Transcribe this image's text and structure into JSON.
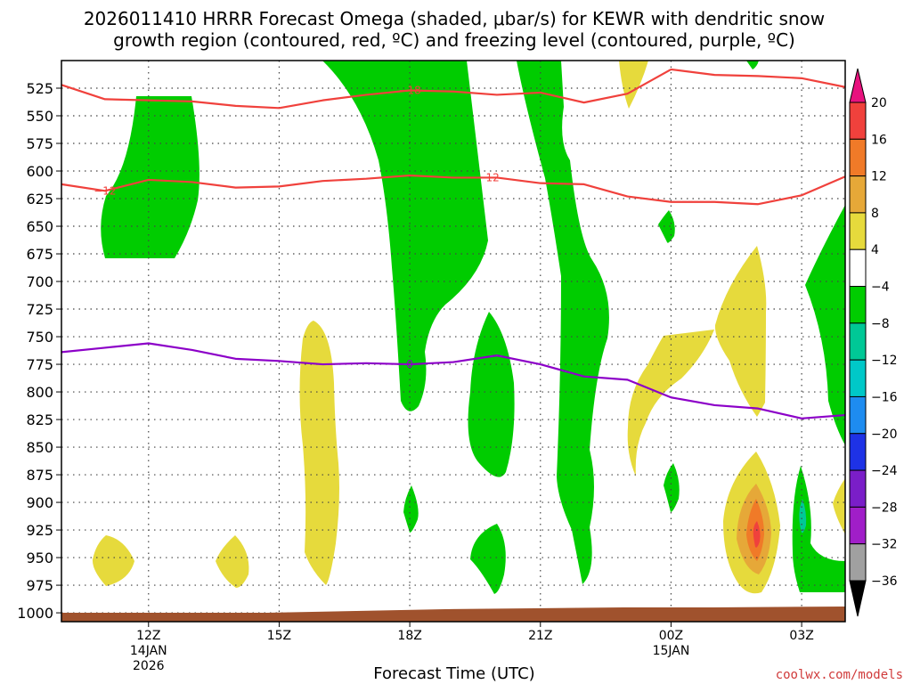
{
  "chart_data": {
    "type": "time-height cross-section",
    "title_line1": "2026011410 HRRR Forecast Omega (shaded, μbar/s) for KEWR with dendritic snow",
    "title_line2": "growth region (contoured, red, ºC) and freezing level (contoured, purple, ºC)",
    "xlabel": "Forecast Time (UTC)",
    "credit": "coolwx.com/models",
    "pressure_range": [
      1008,
      500
    ],
    "y_ticks": [
      "525",
      "550",
      "575",
      "600",
      "625",
      "650",
      "675",
      "700",
      "725",
      "750",
      "775",
      "800",
      "825",
      "850",
      "875",
      "900",
      "925",
      "950",
      "975",
      "1000"
    ],
    "time_range_hours": [
      10.0,
      28.0
    ],
    "x_ticks": [
      {
        "hour": 12,
        "label": "12Z",
        "sub1": "14JAN",
        "sub2": "2026"
      },
      {
        "hour": 15,
        "label": "15Z",
        "sub1": "",
        "sub2": ""
      },
      {
        "hour": 18,
        "label": "18Z",
        "sub1": "",
        "sub2": ""
      },
      {
        "hour": 21,
        "label": "21Z",
        "sub1": "",
        "sub2": ""
      },
      {
        "hour": 24,
        "label": "00Z",
        "sub1": "15JAN",
        "sub2": ""
      },
      {
        "hour": 27,
        "label": "03Z",
        "sub1": "",
        "sub2": ""
      }
    ],
    "colorbar": {
      "levels": [
        "20",
        "16",
        "12",
        "8",
        "4",
        "−4",
        "−8",
        "−12",
        "−16",
        "−20",
        "−24",
        "−28",
        "−32",
        "−36"
      ],
      "colors": [
        "#e8127e",
        "#f0413c",
        "#f07a28",
        "#e6a838",
        "#e6da3c",
        "#ffffff",
        "#00cc00",
        "#00c896",
        "#00c8c8",
        "#1e8cf0",
        "#1e32e6",
        "#7a1ec8",
        "#a01ec8",
        "#a0a0a0",
        "#000000"
      ]
    },
    "contours": [
      {
        "name": "minus-18-isotherm",
        "label": "−18",
        "color": "#f0413c",
        "points": [
          [
            10.0,
            522
          ],
          [
            11.0,
            535
          ],
          [
            12.0,
            536
          ],
          [
            13.0,
            537
          ],
          [
            14.0,
            541
          ],
          [
            15.0,
            543
          ],
          [
            16.0,
            536
          ],
          [
            17.0,
            531
          ],
          [
            18.0,
            527
          ],
          [
            19.0,
            528
          ],
          [
            20.0,
            531
          ],
          [
            21.0,
            529
          ],
          [
            22.0,
            538
          ],
          [
            23.0,
            530
          ],
          [
            24.0,
            508
          ],
          [
            25.0,
            513
          ],
          [
            26.0,
            514
          ],
          [
            27.0,
            516
          ],
          [
            28.0,
            524
          ]
        ]
      },
      {
        "name": "minus-12-isotherm",
        "label": "−12",
        "color": "#f0413c",
        "points": [
          [
            10.0,
            612
          ],
          [
            11.0,
            618
          ],
          [
            12.0,
            608
          ],
          [
            13.0,
            610
          ],
          [
            14.0,
            615
          ],
          [
            15.0,
            614
          ],
          [
            16.0,
            609
          ],
          [
            17.0,
            607
          ],
          [
            18.0,
            604
          ],
          [
            19.0,
            606
          ],
          [
            20.0,
            606
          ],
          [
            21.0,
            611
          ],
          [
            22.0,
            612
          ],
          [
            23.0,
            623
          ],
          [
            24.0,
            628
          ],
          [
            25.0,
            628
          ],
          [
            26.0,
            630
          ],
          [
            27.0,
            622
          ],
          [
            28.0,
            605
          ]
        ]
      },
      {
        "name": "freezing-level",
        "label": "0",
        "color": "#8c00c8",
        "points": [
          [
            10.0,
            764
          ],
          [
            11.0,
            760
          ],
          [
            12.0,
            756
          ],
          [
            13.0,
            762
          ],
          [
            14.0,
            770
          ],
          [
            15.0,
            772
          ],
          [
            16.0,
            775
          ],
          [
            17.0,
            774
          ],
          [
            18.0,
            775
          ],
          [
            19.0,
            773
          ],
          [
            20.0,
            767
          ],
          [
            21.0,
            775
          ],
          [
            22.0,
            786
          ],
          [
            23.0,
            789
          ],
          [
            24.0,
            805
          ],
          [
            25.0,
            812
          ],
          [
            26.0,
            815
          ],
          [
            27.0,
            824
          ],
          [
            28.0,
            821
          ]
        ]
      }
    ],
    "shaded_regions": [
      {
        "name": "green-shade",
        "omega_range": "-8 to -4",
        "color": "#00cc00"
      },
      {
        "name": "yellow-shade",
        "omega_range": "4 to 8",
        "color": "#e6da3c"
      },
      {
        "name": "gold-shade",
        "omega_range": "8 to 12",
        "color": "#e6a838"
      },
      {
        "name": "orange-shade",
        "omega_range": "12 to 16",
        "color": "#f07a28"
      },
      {
        "name": "red-shade",
        "omega_range": "16 to 20",
        "color": "#f0413c"
      },
      {
        "name": "teal-shade",
        "omega_range": "-12 to -8",
        "color": "#00c896"
      }
    ],
    "terrain_color": "#a0522d"
  }
}
